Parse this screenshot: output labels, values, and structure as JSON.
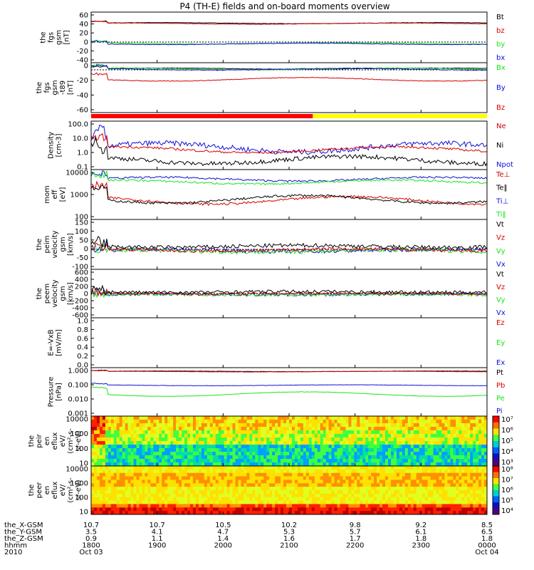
{
  "title": "P4 (TH-E) fields and on-board moments overview",
  "colors": {
    "black": "#000000",
    "red": "#d40000",
    "green": "#19e619",
    "blue": "#1010d8",
    "yellow": "#ffff00",
    "brightred": "#ff0000"
  },
  "panels": [
    {
      "ylabel": [
        "the",
        "fgs",
        "gsm",
        "[nT]"
      ],
      "ticks": [
        "60",
        "40",
        "20",
        "0",
        "-20",
        "-40"
      ],
      "ymin": -45,
      "ymax": 65,
      "log": false,
      "zero": true,
      "legend": [
        {
          "t": "Bt",
          "c": "black"
        },
        {
          "t": "bz",
          "c": "red"
        },
        {
          "t": "by",
          "c": "green"
        },
        {
          "t": "bx",
          "c": "blue"
        }
      ],
      "series": [
        {
          "c": "black",
          "base": 41,
          "amp": 1.2,
          "noise": 0.4
        },
        {
          "c": "red",
          "base": 40,
          "amp": 1.2,
          "noise": 0.4
        },
        {
          "c": "green",
          "base": -3,
          "amp": 1.5,
          "noise": 0.6
        },
        {
          "c": "blue",
          "base": -4,
          "amp": 1.5,
          "noise": 0.6
        }
      ]
    },
    {
      "ylabel": [
        "the",
        "fgs",
        "gsm",
        "-t89",
        "[nT]"
      ],
      "ticks": [
        "0",
        "-20",
        "-40",
        "-60"
      ],
      "ymin": -72,
      "ymax": 12,
      "log": false,
      "zero": true,
      "legend": [
        {
          "t": "Bx",
          "c": "green"
        },
        {
          "t": "By",
          "c": "blue"
        },
        {
          "t": "Bz",
          "c": "red"
        }
      ],
      "series": [
        {
          "c": "black",
          "base": 2,
          "amp": 1,
          "noise": 0.3
        },
        {
          "c": "green",
          "base": 1.5,
          "amp": 1.5,
          "noise": 0.6
        },
        {
          "c": "blue",
          "base": 1,
          "amp": 1.5,
          "noise": 0.6
        },
        {
          "c": "red",
          "base": -16,
          "amp": 3,
          "noise": 0.5
        }
      ]
    },
    {
      "ylabel": [
        "Density",
        "[cm-3]"
      ],
      "ticks": [
        "100.0",
        "10.0",
        "1.0",
        "0.1"
      ],
      "ymin": -1.1,
      "ymax": 2.2,
      "log": true,
      "legend": [
        {
          "t": "Ne",
          "c": "red"
        },
        {
          "t": "Ni",
          "c": "black"
        },
        {
          "t": "Npot",
          "c": "blue"
        }
      ],
      "series": [
        {
          "c": "blue",
          "base": 0.4,
          "amp": 0.3,
          "noise": 0.18
        },
        {
          "c": "red",
          "base": 0.25,
          "amp": 0.2,
          "noise": 0.08
        },
        {
          "c": "black",
          "base": -0.45,
          "amp": 0.25,
          "noise": 0.15
        }
      ]
    },
    {
      "ylabel": [
        "mom",
        "eff",
        "[eV]"
      ],
      "ticks": [
        "10000",
        "1000",
        "100"
      ],
      "ymin": 1.5,
      "ymax": 4.1,
      "log": true,
      "legend": [
        {
          "t": "Te⊥",
          "c": "red"
        },
        {
          "t": "Te‖",
          "c": "black"
        },
        {
          "t": "Ti⊥",
          "c": "blue"
        },
        {
          "t": "Ti‖",
          "c": "green"
        }
      ],
      "series": [
        {
          "c": "blue",
          "base": 3.6,
          "amp": 0.1,
          "noise": 0.05
        },
        {
          "c": "green",
          "base": 3.45,
          "amp": 0.1,
          "noise": 0.05
        },
        {
          "c": "red",
          "base": 2.5,
          "amp": 0.2,
          "noise": 0.06
        },
        {
          "c": "black",
          "base": 2.55,
          "amp": 0.2,
          "noise": 0.06
        }
      ]
    },
    {
      "ylabel": [
        "the",
        "peim",
        "velocity",
        "gsm",
        "[km/s]"
      ],
      "ticks": [
        "150",
        "100",
        "50",
        "0",
        "-50",
        "-100"
      ],
      "ymin": -100,
      "ymax": 150,
      "log": false,
      "zero": true,
      "legend": [
        {
          "t": "Vt",
          "c": "black"
        },
        {
          "t": "Vz",
          "c": "red"
        },
        {
          "t": "Vy",
          "c": "green"
        },
        {
          "t": "Vx",
          "c": "blue"
        }
      ],
      "series": [
        {
          "c": "blue",
          "base": -5,
          "amp": 5,
          "noise": 10
        },
        {
          "c": "green",
          "base": -8,
          "amp": 5,
          "noise": 10
        },
        {
          "c": "red",
          "base": -3,
          "amp": 5,
          "noise": 8
        },
        {
          "c": "black",
          "base": 15,
          "amp": 5,
          "noise": 10
        }
      ]
    },
    {
      "ylabel": [
        "the",
        "peem",
        "velocity",
        "gsm",
        "[km/s]"
      ],
      "ticks": [
        "600",
        "400",
        "200",
        "0",
        "-200",
        "-400",
        "-600"
      ],
      "ymin": -600,
      "ymax": 600,
      "log": false,
      "zero": true,
      "legend": [
        {
          "t": "Vt",
          "c": "black"
        },
        {
          "t": "Vz",
          "c": "red"
        },
        {
          "t": "Vy",
          "c": "green"
        },
        {
          "t": "Vx",
          "c": "blue"
        }
      ],
      "series": [
        {
          "c": "blue",
          "base": -20,
          "amp": 10,
          "noise": 40
        },
        {
          "c": "green",
          "base": -30,
          "amp": 10,
          "noise": 35
        },
        {
          "c": "red",
          "base": 0,
          "amp": 10,
          "noise": 30
        },
        {
          "c": "black",
          "base": 40,
          "amp": 10,
          "noise": 40
        }
      ]
    },
    {
      "ylabel": [
        "E=-VxB",
        "[mV/m]"
      ],
      "ticks": [
        "1.0",
        "0.8",
        "0.6",
        "0.4",
        "0.2",
        "0.0"
      ],
      "ymin": 0,
      "ymax": 1.0,
      "log": false,
      "legend": [
        {
          "t": "Ez",
          "c": "red"
        },
        {
          "t": "Ey",
          "c": "green"
        },
        {
          "t": "Ex",
          "c": "blue"
        }
      ],
      "series": []
    },
    {
      "ylabel": [
        "Pressure",
        "[nPa]"
      ],
      "ticks": [
        "1.000",
        "0.100",
        "0.010",
        "0.001"
      ],
      "ymin": -3.1,
      "ymax": 0.2,
      "log": true,
      "legend": [
        {
          "t": "Pt",
          "c": "black"
        },
        {
          "t": "Pb",
          "c": "red"
        },
        {
          "t": "Pe",
          "c": "green"
        },
        {
          "t": "Pi",
          "c": "blue"
        }
      ],
      "series": [
        {
          "c": "black",
          "base": -0.05,
          "amp": 0.02,
          "noise": 0.01
        },
        {
          "c": "red",
          "base": -0.07,
          "amp": 0.02,
          "noise": 0.01
        },
        {
          "c": "blue",
          "base": -1.0,
          "amp": 0.03,
          "noise": 0.01
        },
        {
          "c": "green",
          "base": -1.6,
          "amp": 0.15,
          "noise": 0.01
        }
      ]
    },
    {
      "ylabel": [
        "the",
        "peir",
        "en",
        "eflux",
        "eV/",
        "(cm²-s-",
        "sr-eV)"
      ],
      "ticks": [
        "10000",
        "1000",
        "100",
        "10"
      ],
      "spec": true,
      "bar": [
        "10⁷",
        "10⁶",
        "10⁵",
        "10⁴",
        "10³"
      ]
    },
    {
      "ylabel": [
        "the",
        "peer",
        "en",
        "eflux",
        "eV/",
        "(cm²-s-",
        "sr-eV)"
      ],
      "ticks": [
        "10000",
        "1000",
        "100",
        "10"
      ],
      "spec": true,
      "bar": [
        "10⁸",
        "10⁷",
        "10⁶",
        "10⁵",
        "10⁴"
      ]
    }
  ],
  "xaxis": {
    "rows": [
      {
        "label": "the_X-GSM",
        "vals": [
          "10.7",
          "10.7",
          "10.5",
          "10.2",
          "9.8",
          "9.2",
          "8.5"
        ]
      },
      {
        "label": "the_Y-GSM",
        "vals": [
          "3.5",
          "4.1",
          "4.7",
          "5.3",
          "5.7",
          "6.1",
          "6.5"
        ]
      },
      {
        "label": "the_Z-GSM",
        "vals": [
          "0.9",
          "1.1",
          "1.4",
          "1.6",
          "1.7",
          "1.8",
          "1.8"
        ]
      },
      {
        "label": "hhmm",
        "vals": [
          "1800",
          "1900",
          "2000",
          "2100",
          "2200",
          "2300",
          "0000"
        ]
      },
      {
        "label": "2010",
        "vals": [
          "Oct 03",
          "",
          "",
          "",
          "",
          "",
          "Oct 04"
        ]
      }
    ]
  }
}
